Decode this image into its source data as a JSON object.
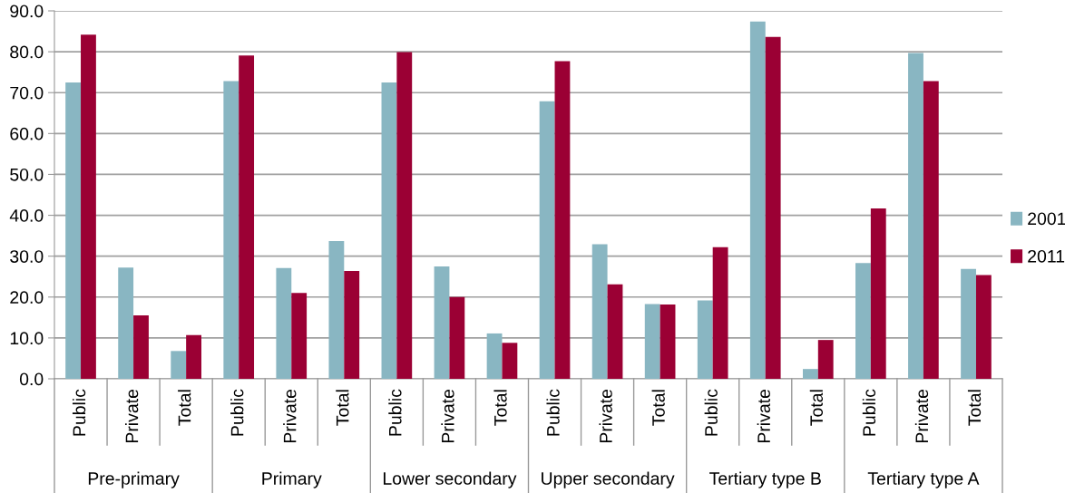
{
  "chart_data": {
    "type": "bar",
    "categories": [
      "Public",
      "Private",
      "Total",
      "Public",
      "Private",
      "Total",
      "Public",
      "Private",
      "Total",
      "Public",
      "Private",
      "Total",
      "Public",
      "Private",
      "Total",
      "Public",
      "Private",
      "Total"
    ],
    "series": [
      {
        "name": "2001",
        "color": "#89b6c2",
        "values": [
          72.5,
          27.2,
          6.8,
          72.8,
          27.1,
          33.7,
          72.5,
          27.5,
          11.1,
          67.9,
          32.9,
          18.3,
          19.2,
          87.4,
          2.4,
          28.3,
          79.7,
          26.9
        ]
      },
      {
        "name": "2011",
        "color": "#9b0034",
        "values": [
          84.2,
          15.5,
          10.7,
          79.1,
          21.0,
          26.4,
          79.9,
          20.0,
          8.8,
          77.7,
          23.1,
          18.2,
          32.2,
          83.6,
          9.5,
          41.7,
          72.8,
          25.4
        ]
      }
    ],
    "annotations": [
      "Pre-primary",
      "Primary",
      "Lower secondary",
      "Upper secondary",
      "Tertiary type B",
      "Tertiary type A"
    ],
    "ylim": [
      0,
      90
    ],
    "yticks": [
      {
        "value": 0,
        "label": "0.0"
      },
      {
        "value": 10,
        "label": "10.0"
      },
      {
        "value": 20,
        "label": "20.0"
      },
      {
        "value": 30,
        "label": "30.0"
      },
      {
        "value": 40,
        "label": "40.0"
      },
      {
        "value": 50,
        "label": "50.0"
      },
      {
        "value": 60,
        "label": "60.0"
      },
      {
        "value": 70,
        "label": "70.0"
      },
      {
        "value": 80,
        "label": "80.0"
      },
      {
        "value": 90,
        "label": "90.0"
      }
    ],
    "grid": "y",
    "legend": "right"
  }
}
